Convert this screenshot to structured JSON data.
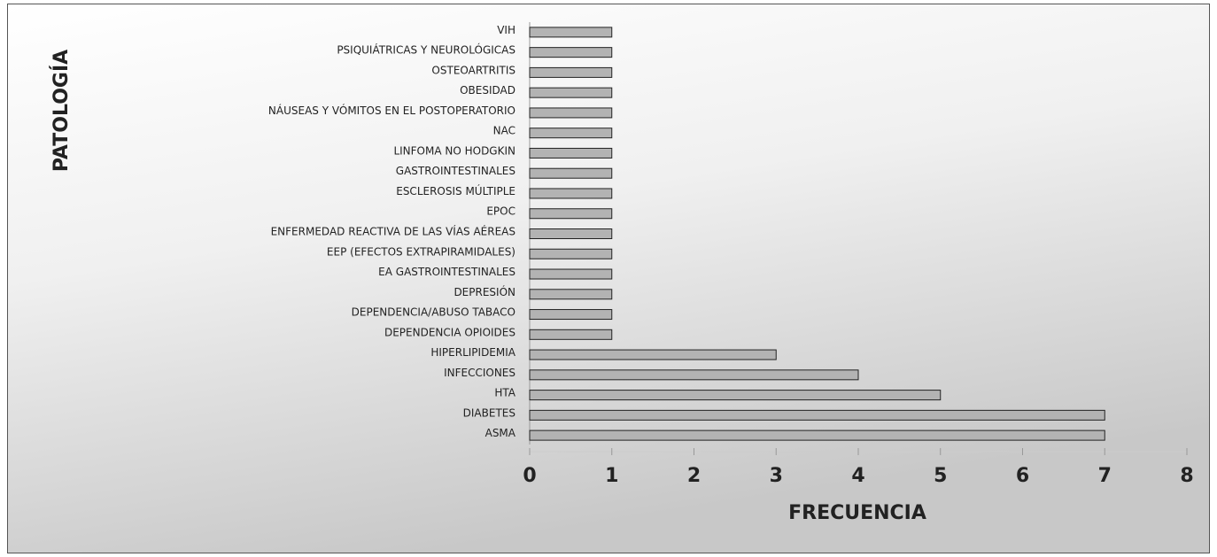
{
  "chart_data": {
    "type": "bar",
    "orientation": "horizontal",
    "y_label": "PATOLOGÍA",
    "x_label": "FRECUENCIA",
    "categories": [
      "VIH",
      "PSIQUIÁTRICAS Y NEUROLÓGICAS",
      "OSTEOARTRITIS",
      "OBESIDAD",
      "NÁUSEAS Y VÓMITOS EN EL POSTOPERATORIO",
      "NAC",
      "LINFOMA NO HODGKIN",
      "GASTROINTESTINALES",
      "ESCLEROSIS MÚLTIPLE",
      "EPOC",
      "ENFERMEDAD REACTIVA DE LAS VÍAS AÉREAS",
      "EEP (EFECTOS EXTRAPIRAMIDALES)",
      "EA GASTROINTESTINALES",
      "DEPRESIÓN",
      "DEPENDENCIA/ABUSO TABACO",
      "DEPENDENCIA OPIOIDES",
      "HIPERLIPIDEMIA",
      "INFECCIONES",
      "HTA",
      "DIABETES",
      "ASMA"
    ],
    "values": [
      1,
      1,
      1,
      1,
      1,
      1,
      1,
      1,
      1,
      1,
      1,
      1,
      1,
      1,
      1,
      1,
      3,
      4,
      5,
      7,
      7
    ],
    "color": "#b3b3b3",
    "xlim": [
      0,
      8
    ],
    "xticks": [
      0,
      1,
      2,
      3,
      4,
      5,
      6,
      7,
      8
    ]
  }
}
